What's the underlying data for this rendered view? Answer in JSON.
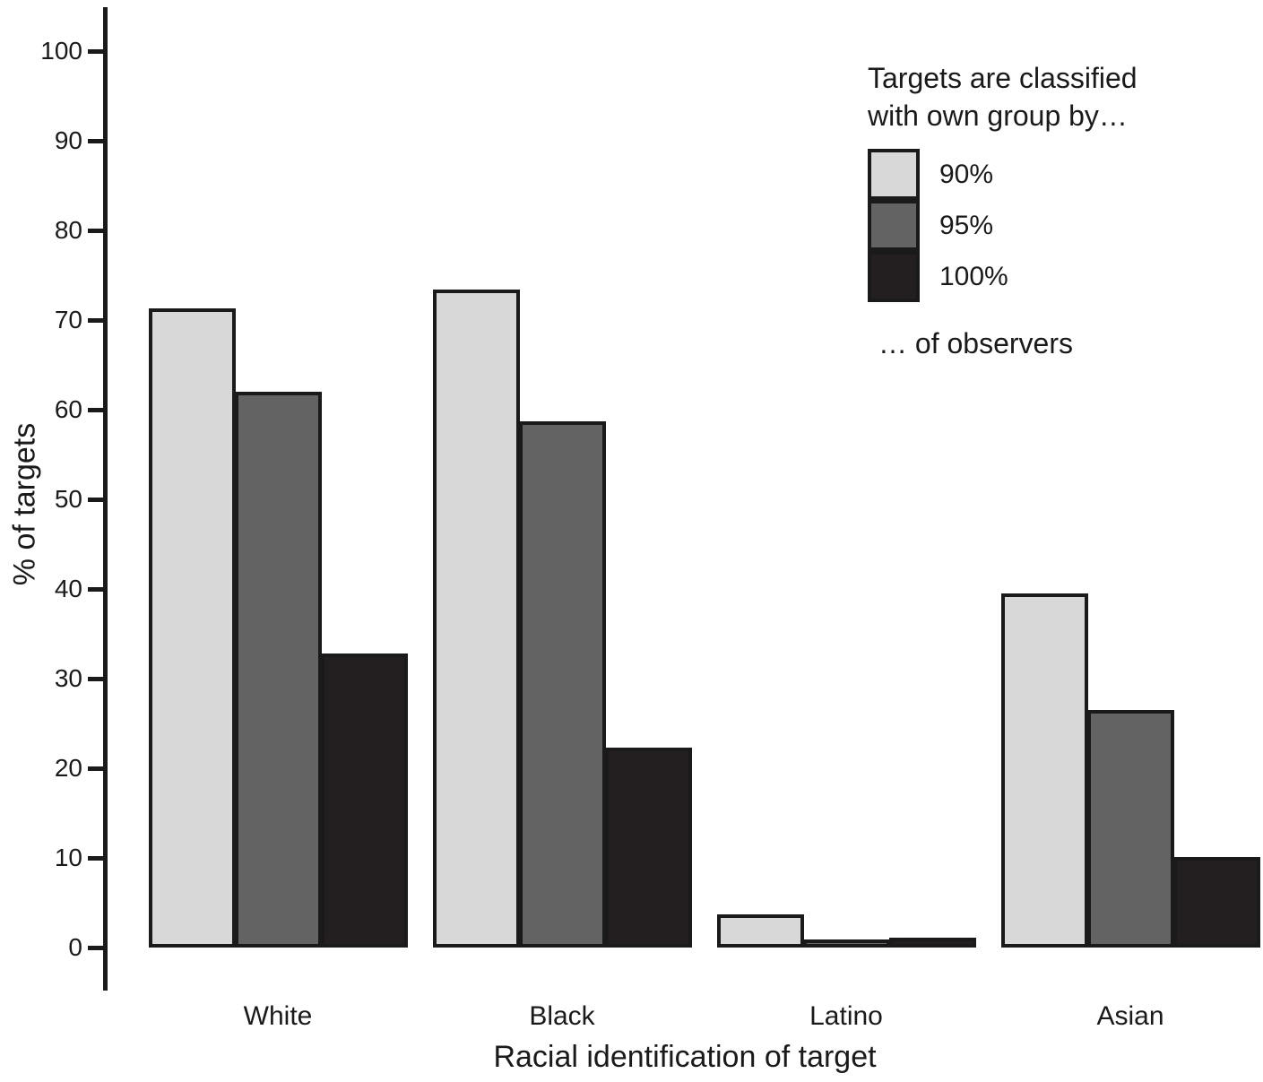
{
  "chart_data": {
    "type": "bar",
    "title": "",
    "categories": [
      "White",
      "Black",
      "Latino",
      "Asian"
    ],
    "series": [
      {
        "name": "90%",
        "color": "#d8d8d8",
        "values": [
          71.3,
          73.4,
          3.7,
          39.5
        ]
      },
      {
        "name": "95%",
        "color": "#636363",
        "values": [
          62.0,
          58.7,
          0.9,
          26.5
        ]
      },
      {
        "name": "100%",
        "color": "#231f20",
        "values": [
          32.8,
          22.3,
          1.1,
          10.1
        ]
      }
    ],
    "xlabel": "Racial identification of target",
    "ylabel": "% of targets",
    "ylim": [
      0,
      100
    ],
    "ytick_step": 10,
    "yticks": [
      0,
      10,
      20,
      30,
      40,
      50,
      60,
      70,
      80,
      90,
      100
    ],
    "grid": false,
    "legend": {
      "position": "top-right",
      "title_line1": "Targets are classified",
      "title_line2": "with own group by…",
      "entries": [
        "90%",
        "95%",
        "100%"
      ],
      "footer": "… of observers"
    },
    "colors": {
      "axis": "#1a1a1a",
      "text": "#1a1a1a",
      "background": "#ffffff"
    }
  }
}
